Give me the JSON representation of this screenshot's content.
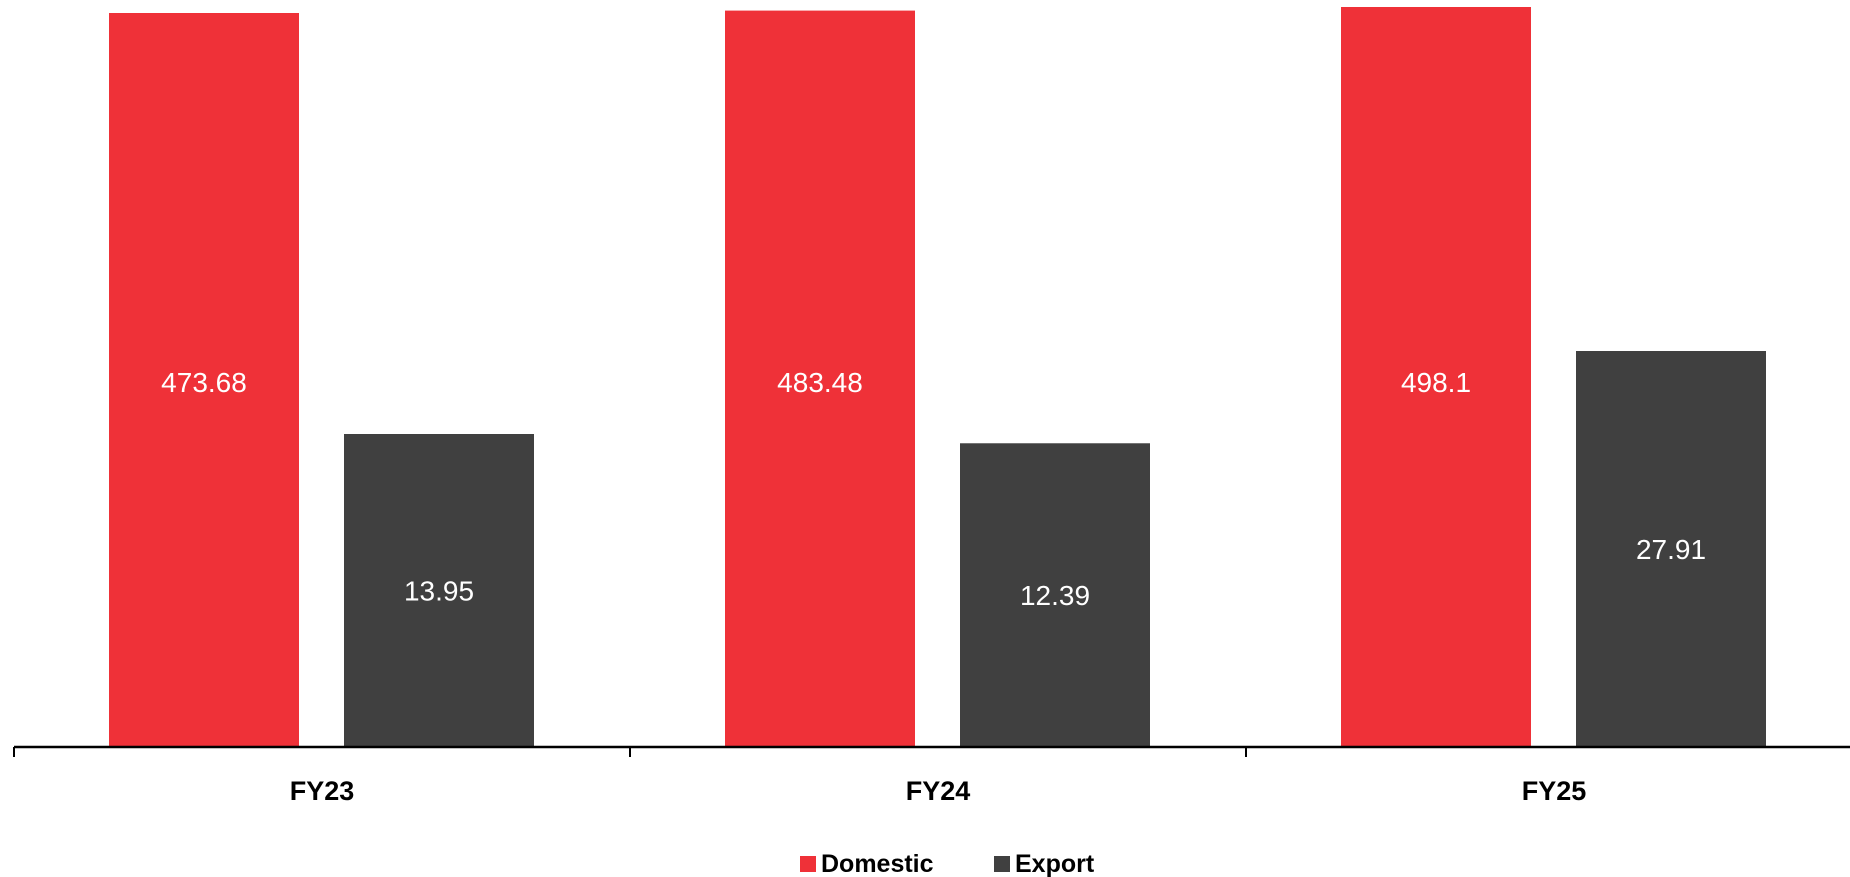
{
  "chart_data": {
    "type": "bar",
    "categories": [
      "FY23",
      "FY24",
      "FY25"
    ],
    "series": [
      {
        "name": "Domestic",
        "color": "#ef3138",
        "values": [
          473.68,
          483.48,
          498.1
        ]
      },
      {
        "name": "Export",
        "color": "#404040",
        "values": [
          13.95,
          12.39,
          27.91
        ]
      }
    ],
    "legend": "bottom-center",
    "grid": false,
    "note": "Broken-axis style: Domestic and Export bars use independent scales"
  }
}
